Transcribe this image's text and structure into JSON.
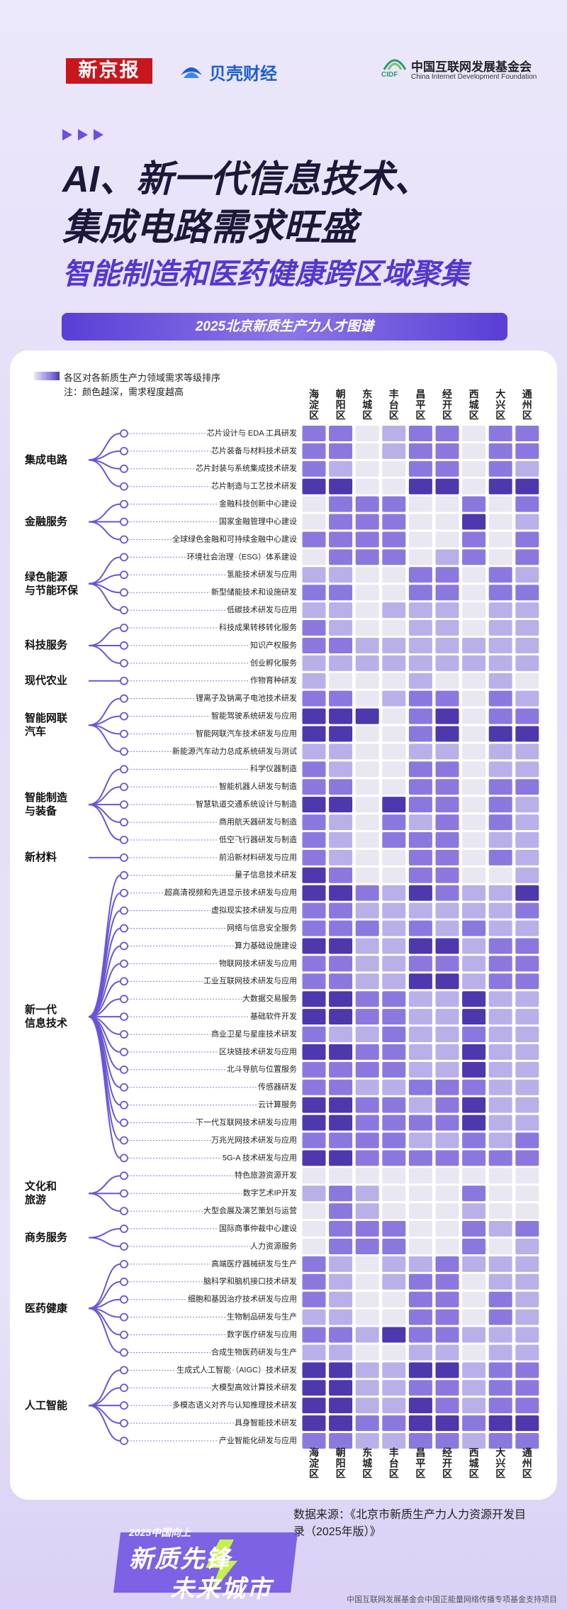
{
  "header": {
    "logo_xjb": "新京报",
    "logo_bk": "贝壳财经",
    "logo_cidf": "CIDF",
    "cidf_cn": "中国互联网发展基金会",
    "cidf_en": "China Internet Development Foundation",
    "title_line1": "AI、新一代信息技术、",
    "title_line2": "集成电路需求旺盛",
    "title_line3": "智能制造和医药健康跨区域聚集",
    "banner": "2025北京新质生产力人才图谱"
  },
  "legend": {
    "text": "各区对各新质生产力领域需求等级排序",
    "note": "注：颜色越深，需求程度越高",
    "colors": [
      "#e9e7f1",
      "#b9b0ea",
      "#8b78df",
      "#4d38ad"
    ]
  },
  "districts": [
    "海淀区",
    "朝阳区",
    "东城区",
    "丰台区",
    "昌平区",
    "经开区",
    "西城区",
    "大兴区",
    "通州区"
  ],
  "groups": [
    {
      "name": "集成电路",
      "rows": [
        {
          "label": "芯片设计与 EDA 工具研发",
          "levels": [
            2,
            2,
            0,
            1,
            2,
            2,
            0,
            2,
            2
          ]
        },
        {
          "label": "芯片装备与材料技术研发",
          "levels": [
            2,
            2,
            0,
            1,
            2,
            2,
            0,
            2,
            2
          ]
        },
        {
          "label": "芯片封装与系统集成技术研发",
          "levels": [
            2,
            1,
            0,
            0,
            2,
            2,
            0,
            2,
            1
          ]
        },
        {
          "label": "芯片制造与工艺技术研发",
          "levels": [
            3,
            3,
            0,
            0,
            3,
            3,
            0,
            3,
            3
          ]
        }
      ]
    },
    {
      "name": "金融服务",
      "rows": [
        {
          "label": "金融科技创新中心建设",
          "levels": [
            0,
            2,
            2,
            2,
            0,
            0,
            2,
            0,
            2
          ]
        },
        {
          "label": "国家金融管理中心建设",
          "levels": [
            0,
            2,
            2,
            2,
            0,
            0,
            3,
            0,
            1
          ]
        },
        {
          "label": "全球绿色金融和可持续金融中心建设",
          "levels": [
            2,
            2,
            2,
            2,
            0,
            0,
            2,
            0,
            2
          ]
        }
      ]
    },
    {
      "name": "绿色能源\n与节能环保",
      "rows": [
        {
          "label": "环境社会治理（ESG）体系建设",
          "levels": [
            0,
            2,
            2,
            2,
            0,
            1,
            2,
            0,
            2
          ]
        },
        {
          "label": "氢能技术研发与应用",
          "levels": [
            1,
            1,
            0,
            0,
            2,
            2,
            0,
            2,
            1
          ]
        },
        {
          "label": "新型储能技术和设施研发",
          "levels": [
            2,
            2,
            0,
            0,
            2,
            2,
            0,
            2,
            2
          ]
        },
        {
          "label": "低碳技术研发与应用",
          "levels": [
            1,
            1,
            0,
            1,
            1,
            1,
            0,
            1,
            1
          ]
        }
      ]
    },
    {
      "name": "科技服务",
      "rows": [
        {
          "label": "科技成果转移转化服务",
          "levels": [
            2,
            1,
            0,
            0,
            1,
            1,
            0,
            1,
            1
          ]
        },
        {
          "label": "知识产权服务",
          "levels": [
            2,
            2,
            1,
            1,
            1,
            1,
            1,
            1,
            1
          ]
        },
        {
          "label": "创业孵化服务",
          "levels": [
            1,
            1,
            1,
            1,
            1,
            1,
            1,
            1,
            1
          ]
        }
      ]
    },
    {
      "name": "现代农业",
      "rows": [
        {
          "label": "作物育种研发",
          "levels": [
            1,
            0,
            0,
            0,
            1,
            0,
            0,
            1,
            0
          ]
        }
      ]
    },
    {
      "name": "智能网联\n汽车",
      "rows": [
        {
          "label": "锂离子及钠离子电池技术研发",
          "levels": [
            2,
            2,
            0,
            1,
            2,
            2,
            0,
            2,
            1
          ]
        },
        {
          "label": "智能驾驶系统研发与应用",
          "levels": [
            3,
            3,
            3,
            0,
            2,
            3,
            0,
            2,
            2
          ]
        },
        {
          "label": "智能网联汽车技术研发与应用",
          "levels": [
            3,
            3,
            0,
            0,
            2,
            3,
            0,
            3,
            3
          ]
        },
        {
          "label": "新能源汽车动力总成系统研发与测试",
          "levels": [
            1,
            1,
            0,
            0,
            1,
            1,
            0,
            1,
            1
          ]
        }
      ]
    },
    {
      "name": "智能制造\n与装备",
      "rows": [
        {
          "label": "科学仪器制造",
          "levels": [
            2,
            1,
            0,
            0,
            2,
            2,
            0,
            1,
            1
          ]
        },
        {
          "label": "智能机器人研发与制造",
          "levels": [
            2,
            2,
            0,
            0,
            2,
            2,
            0,
            2,
            2
          ]
        },
        {
          "label": "智慧轨道交通系统设计与制造",
          "levels": [
            3,
            3,
            0,
            3,
            2,
            2,
            0,
            2,
            1
          ]
        },
        {
          "label": "商用航天器研发与制造",
          "levels": [
            2,
            1,
            0,
            2,
            1,
            2,
            0,
            2,
            1
          ]
        },
        {
          "label": "低空飞行器研发与制造",
          "levels": [
            2,
            1,
            0,
            2,
            2,
            2,
            0,
            1,
            1
          ]
        }
      ]
    },
    {
      "name": "新材料",
      "rows": [
        {
          "label": "前沿新材料研发与应用",
          "levels": [
            2,
            1,
            0,
            0,
            2,
            2,
            0,
            2,
            1
          ]
        }
      ]
    },
    {
      "name": "新一代\n信息技术",
      "rows": [
        {
          "label": "量子信息技术研发",
          "levels": [
            3,
            2,
            0,
            0,
            2,
            2,
            0,
            0,
            1
          ]
        },
        {
          "label": "超高清视频和先进显示技术研发与应用",
          "levels": [
            3,
            3,
            2,
            1,
            3,
            2,
            1,
            1,
            3
          ]
        },
        {
          "label": "虚拟现实技术研发与应用",
          "levels": [
            2,
            2,
            1,
            1,
            1,
            1,
            1,
            1,
            2
          ]
        },
        {
          "label": "网络与信息安全服务",
          "levels": [
            2,
            2,
            2,
            1,
            2,
            1,
            2,
            1,
            1
          ]
        },
        {
          "label": "算力基础设施建设",
          "levels": [
            3,
            3,
            1,
            1,
            3,
            3,
            1,
            2,
            2
          ]
        },
        {
          "label": "物联网技术研发与应用",
          "levels": [
            2,
            2,
            1,
            1,
            2,
            2,
            1,
            2,
            2
          ]
        },
        {
          "label": "工业互联网技术研发与应用",
          "levels": [
            2,
            2,
            1,
            1,
            3,
            3,
            1,
            2,
            2
          ]
        },
        {
          "label": "大数据交易服务",
          "levels": [
            3,
            3,
            2,
            2,
            1,
            1,
            3,
            1,
            1
          ]
        },
        {
          "label": "基础软件开发",
          "levels": [
            3,
            3,
            2,
            2,
            1,
            1,
            3,
            1,
            1
          ]
        },
        {
          "label": "商业卫星与星座技术研发",
          "levels": [
            2,
            1,
            1,
            2,
            1,
            1,
            2,
            1,
            1
          ]
        },
        {
          "label": "区块链技术研发与应用",
          "levels": [
            3,
            3,
            2,
            2,
            1,
            1,
            3,
            1,
            1
          ]
        },
        {
          "label": "北斗导航与位置服务",
          "levels": [
            2,
            2,
            2,
            2,
            1,
            1,
            3,
            1,
            1
          ]
        },
        {
          "label": "传感器研发",
          "levels": [
            2,
            2,
            1,
            1,
            2,
            2,
            2,
            1,
            1
          ]
        },
        {
          "label": "云计算服务",
          "levels": [
            3,
            3,
            2,
            2,
            1,
            2,
            3,
            1,
            1
          ]
        },
        {
          "label": "下一代互联网技术研发与应用",
          "levels": [
            3,
            3,
            2,
            2,
            2,
            2,
            3,
            1,
            1
          ]
        },
        {
          "label": "万兆光网技术研发与应用",
          "levels": [
            2,
            2,
            2,
            2,
            1,
            1,
            2,
            1,
            2
          ]
        },
        {
          "label": "5G-A 技术研发与应用",
          "levels": [
            3,
            3,
            2,
            2,
            2,
            2,
            2,
            2,
            2
          ]
        }
      ]
    },
    {
      "name": "文化和\n旅游",
      "rows": [
        {
          "label": "特色旅游资源开发",
          "levels": [
            0,
            0,
            0,
            0,
            0,
            0,
            0,
            0,
            0
          ]
        },
        {
          "label": "数字艺术IP开发",
          "levels": [
            1,
            2,
            1,
            0,
            0,
            0,
            2,
            0,
            0
          ]
        },
        {
          "label": "大型会展及演艺策划与运营",
          "levels": [
            0,
            2,
            1,
            0,
            0,
            0,
            1,
            0,
            0
          ]
        }
      ]
    },
    {
      "name": "商务服务",
      "rows": [
        {
          "label": "国际商事仲裁中心建设",
          "levels": [
            0,
            2,
            2,
            2,
            0,
            0,
            2,
            1,
            2
          ]
        },
        {
          "label": "人力资源服务",
          "levels": [
            0,
            2,
            2,
            2,
            0,
            0,
            2,
            0,
            1
          ]
        }
      ]
    },
    {
      "name": "医药健康",
      "rows": [
        {
          "label": "高端医疗器械研发与生产",
          "levels": [
            2,
            1,
            0,
            1,
            1,
            2,
            1,
            1,
            1
          ]
        },
        {
          "label": "脑科学和脑机接口技术研发",
          "levels": [
            2,
            1,
            0,
            1,
            2,
            2,
            0,
            1,
            1
          ]
        },
        {
          "label": "细胞和基因治疗技术研发与应用",
          "levels": [
            2,
            1,
            0,
            0,
            2,
            2,
            0,
            2,
            1
          ]
        },
        {
          "label": "生物制品研发与生产",
          "levels": [
            1,
            1,
            0,
            0,
            2,
            2,
            0,
            2,
            1
          ]
        },
        {
          "label": "数字医疗研发与应用",
          "levels": [
            2,
            2,
            1,
            3,
            2,
            2,
            1,
            1,
            1
          ]
        },
        {
          "label": "合成生物医药研发与生产",
          "levels": [
            1,
            1,
            0,
            0,
            1,
            1,
            0,
            1,
            1
          ]
        }
      ]
    },
    {
      "name": "人工智能",
      "rows": [
        {
          "label": "生成式人工智能（AIGC）技术研发",
          "levels": [
            3,
            3,
            1,
            1,
            3,
            3,
            1,
            2,
            2
          ]
        },
        {
          "label": "大模型高效计算技术研发",
          "levels": [
            3,
            3,
            1,
            1,
            2,
            2,
            1,
            2,
            2
          ]
        },
        {
          "label": "多模态语义对齐与认知推理技术研发",
          "levels": [
            3,
            3,
            1,
            1,
            3,
            2,
            1,
            2,
            2
          ]
        },
        {
          "label": "具身智能技术研发",
          "levels": [
            3,
            3,
            2,
            2,
            3,
            3,
            2,
            3,
            3
          ]
        },
        {
          "label": "产业智能化研发与应用",
          "levels": [
            2,
            2,
            1,
            1,
            2,
            2,
            1,
            2,
            2
          ]
        }
      ]
    }
  ],
  "footer": {
    "source": "数据来源：《北京市新质生产力人力资源开发目录（2025年版）》",
    "badge_top": "2025中国向上",
    "badge_1": "新质先锋",
    "badge_2": "未来城市",
    "support": "中国互联网发展基金会中国正能量网络传播专项基金支持项目"
  }
}
